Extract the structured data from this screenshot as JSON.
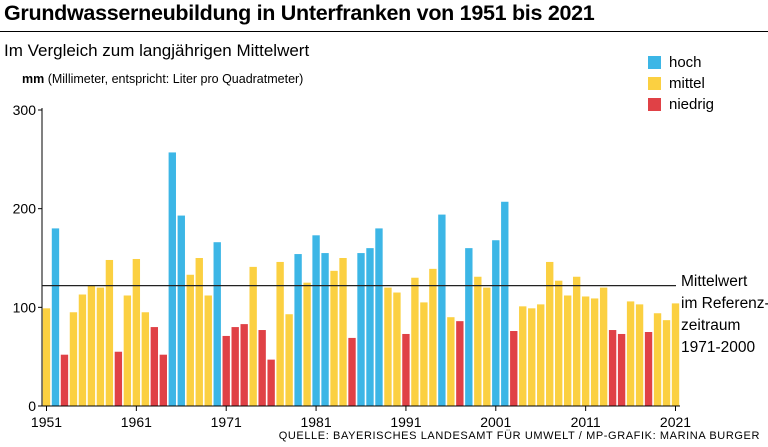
{
  "title": "Grundwasserneubildung in Unterfranken von 1951 bis 2021",
  "subtitle": "Im Vergleich zum langjährigen Mittelwert",
  "unit_short": "mm",
  "unit_long": " (Millimeter, entspricht: Liter pro Quadratmeter)",
  "legend": [
    {
      "label": "hoch",
      "color": "#3cb6e6"
    },
    {
      "label": "mittel",
      "color": "#fbd041"
    },
    {
      "label": "niedrig",
      "color": "#e04146"
    }
  ],
  "reference_label": [
    "Mittelwert",
    "im Referenz-",
    "zeitraum",
    "1971-2000"
  ],
  "source": "QUELLE: BAYERISCHES LANDESAMT FÜR UMWELT / MP-GRAFIK: MARINA BURGER",
  "chart_data": {
    "type": "bar",
    "x_start": 1951,
    "x_end": 2021,
    "x_ticks": [
      "1951",
      "1961",
      "1971",
      "1981",
      "1991",
      "2001",
      "2011",
      "2021"
    ],
    "y_ticks": [
      "0",
      "100",
      "200",
      "300"
    ],
    "ylim": [
      0,
      300
    ],
    "reference_value": 122,
    "series_colors": {
      "hoch": "#3cb6e6",
      "mittel": "#fbd041",
      "niedrig": "#e04146"
    },
    "data": [
      {
        "year": 1951,
        "value": 99,
        "class": "mittel"
      },
      {
        "year": 1952,
        "value": 180,
        "class": "hoch"
      },
      {
        "year": 1953,
        "value": 52,
        "class": "niedrig"
      },
      {
        "year": 1954,
        "value": 95,
        "class": "mittel"
      },
      {
        "year": 1955,
        "value": 113,
        "class": "mittel"
      },
      {
        "year": 1956,
        "value": 122,
        "class": "mittel"
      },
      {
        "year": 1957,
        "value": 120,
        "class": "mittel"
      },
      {
        "year": 1958,
        "value": 148,
        "class": "mittel"
      },
      {
        "year": 1959,
        "value": 55,
        "class": "niedrig"
      },
      {
        "year": 1960,
        "value": 112,
        "class": "mittel"
      },
      {
        "year": 1961,
        "value": 149,
        "class": "mittel"
      },
      {
        "year": 1962,
        "value": 95,
        "class": "mittel"
      },
      {
        "year": 1963,
        "value": 80,
        "class": "niedrig"
      },
      {
        "year": 1964,
        "value": 52,
        "class": "niedrig"
      },
      {
        "year": 1965,
        "value": 257,
        "class": "hoch"
      },
      {
        "year": 1966,
        "value": 193,
        "class": "hoch"
      },
      {
        "year": 1967,
        "value": 133,
        "class": "mittel"
      },
      {
        "year": 1968,
        "value": 150,
        "class": "mittel"
      },
      {
        "year": 1969,
        "value": 112,
        "class": "mittel"
      },
      {
        "year": 1970,
        "value": 166,
        "class": "hoch"
      },
      {
        "year": 1971,
        "value": 71,
        "class": "niedrig"
      },
      {
        "year": 1972,
        "value": 80,
        "class": "niedrig"
      },
      {
        "year": 1973,
        "value": 83,
        "class": "niedrig"
      },
      {
        "year": 1974,
        "value": 141,
        "class": "mittel"
      },
      {
        "year": 1975,
        "value": 77,
        "class": "niedrig"
      },
      {
        "year": 1976,
        "value": 47,
        "class": "niedrig"
      },
      {
        "year": 1977,
        "value": 146,
        "class": "mittel"
      },
      {
        "year": 1978,
        "value": 93,
        "class": "mittel"
      },
      {
        "year": 1979,
        "value": 154,
        "class": "hoch"
      },
      {
        "year": 1980,
        "value": 125,
        "class": "mittel"
      },
      {
        "year": 1981,
        "value": 173,
        "class": "hoch"
      },
      {
        "year": 1982,
        "value": 155,
        "class": "hoch"
      },
      {
        "year": 1983,
        "value": 137,
        "class": "mittel"
      },
      {
        "year": 1984,
        "value": 150,
        "class": "mittel"
      },
      {
        "year": 1985,
        "value": 69,
        "class": "niedrig"
      },
      {
        "year": 1986,
        "value": 155,
        "class": "hoch"
      },
      {
        "year": 1987,
        "value": 160,
        "class": "hoch"
      },
      {
        "year": 1988,
        "value": 180,
        "class": "hoch"
      },
      {
        "year": 1989,
        "value": 120,
        "class": "mittel"
      },
      {
        "year": 1990,
        "value": 115,
        "class": "mittel"
      },
      {
        "year": 1991,
        "value": 73,
        "class": "niedrig"
      },
      {
        "year": 1992,
        "value": 130,
        "class": "mittel"
      },
      {
        "year": 1993,
        "value": 105,
        "class": "mittel"
      },
      {
        "year": 1994,
        "value": 139,
        "class": "mittel"
      },
      {
        "year": 1995,
        "value": 194,
        "class": "hoch"
      },
      {
        "year": 1996,
        "value": 90,
        "class": "mittel"
      },
      {
        "year": 1997,
        "value": 86,
        "class": "niedrig"
      },
      {
        "year": 1998,
        "value": 160,
        "class": "hoch"
      },
      {
        "year": 1999,
        "value": 131,
        "class": "mittel"
      },
      {
        "year": 2000,
        "value": 120,
        "class": "mittel"
      },
      {
        "year": 2001,
        "value": 168,
        "class": "hoch"
      },
      {
        "year": 2002,
        "value": 207,
        "class": "hoch"
      },
      {
        "year": 2003,
        "value": 76,
        "class": "niedrig"
      },
      {
        "year": 2004,
        "value": 101,
        "class": "mittel"
      },
      {
        "year": 2005,
        "value": 99,
        "class": "mittel"
      },
      {
        "year": 2006,
        "value": 103,
        "class": "mittel"
      },
      {
        "year": 2007,
        "value": 146,
        "class": "mittel"
      },
      {
        "year": 2008,
        "value": 127,
        "class": "mittel"
      },
      {
        "year": 2009,
        "value": 112,
        "class": "mittel"
      },
      {
        "year": 2010,
        "value": 131,
        "class": "mittel"
      },
      {
        "year": 2011,
        "value": 111,
        "class": "mittel"
      },
      {
        "year": 2012,
        "value": 109,
        "class": "mittel"
      },
      {
        "year": 2013,
        "value": 120,
        "class": "mittel"
      },
      {
        "year": 2014,
        "value": 77,
        "class": "niedrig"
      },
      {
        "year": 2015,
        "value": 73,
        "class": "niedrig"
      },
      {
        "year": 2016,
        "value": 106,
        "class": "mittel"
      },
      {
        "year": 2017,
        "value": 103,
        "class": "mittel"
      },
      {
        "year": 2018,
        "value": 75,
        "class": "niedrig"
      },
      {
        "year": 2019,
        "value": 94,
        "class": "mittel"
      },
      {
        "year": 2020,
        "value": 87,
        "class": "mittel"
      },
      {
        "year": 2021,
        "value": 104,
        "class": "mittel"
      }
    ]
  }
}
